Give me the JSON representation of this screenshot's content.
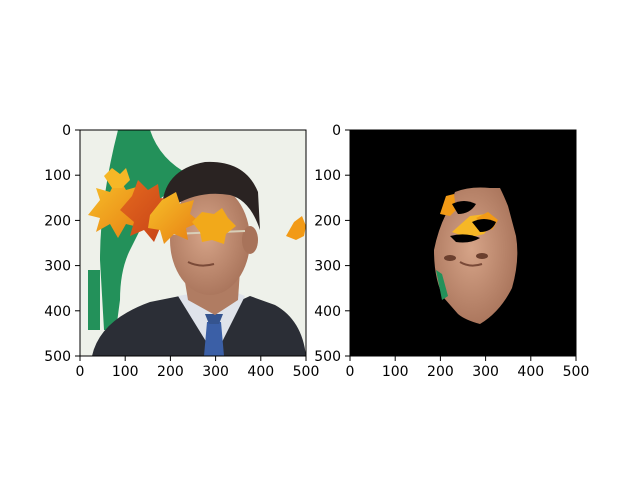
{
  "figure": {
    "panels": [
      {
        "name": "original-with-leaves",
        "content": "photo",
        "xlim": [
          0,
          500
        ],
        "ylim": [
          0,
          500
        ],
        "x_ticks": [
          0,
          100,
          200,
          300,
          400,
          500
        ],
        "y_ticks": [
          0,
          100,
          200,
          300,
          400,
          500
        ],
        "x_tick_labels": [
          "0",
          "100",
          "200",
          "300",
          "400",
          "500"
        ],
        "y_tick_labels": [
          "0",
          "100",
          "200",
          "300",
          "400",
          "500"
        ]
      },
      {
        "name": "face-mask-result",
        "content": "masked-face",
        "xlim": [
          0,
          500
        ],
        "ylim": [
          0,
          500
        ],
        "x_ticks": [
          0,
          100,
          200,
          300,
          400,
          500
        ],
        "y_ticks": [
          0,
          100,
          200,
          300,
          400,
          500
        ],
        "x_tick_labels": [
          "0",
          "100",
          "200",
          "300",
          "400",
          "500"
        ],
        "y_tick_labels": [
          "0",
          "100",
          "200",
          "300",
          "400",
          "500"
        ]
      }
    ],
    "colors": {
      "background": "#ffffff",
      "photo_background": "#eef1ea",
      "green_shape": "#23915a",
      "mask_background": "#000000",
      "skin": "#c89478",
      "hair": "#2a2322",
      "suit": "#2b2e36",
      "shirt": "#dfe3ea",
      "tie": "#3b5fa6",
      "leaf_orange": "#f29a16",
      "leaf_red": "#d8531c",
      "leaf_yellow": "#f7c12a"
    }
  }
}
